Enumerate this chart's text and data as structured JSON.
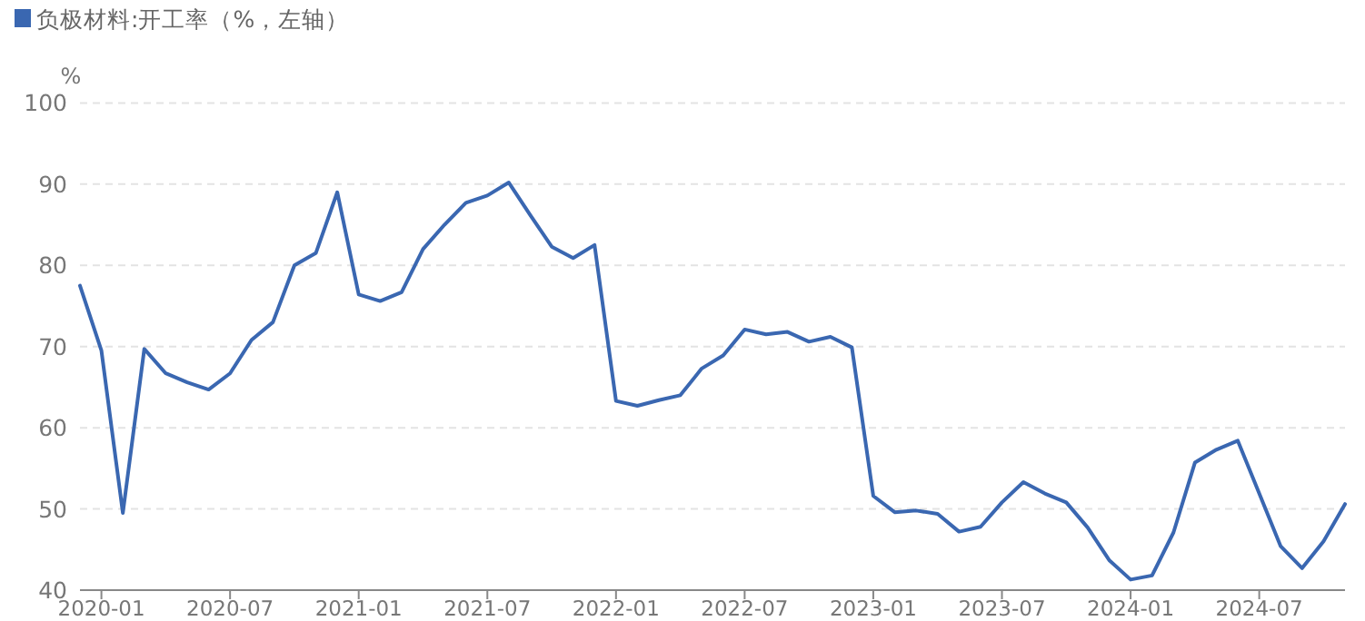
{
  "chart_data": {
    "type": "line",
    "ylabel": "%",
    "legend": "top left",
    "grid": "y",
    "marker": "none",
    "line_style": "solid",
    "x": [
      "2019-12",
      "2020-01",
      "2020-02",
      "2020-03",
      "2020-04",
      "2020-05",
      "2020-06",
      "2020-07",
      "2020-08",
      "2020-09",
      "2020-10",
      "2020-11",
      "2020-12",
      "2021-01",
      "2021-02",
      "2021-03",
      "2021-04",
      "2021-05",
      "2021-06",
      "2021-07",
      "2021-08",
      "2021-09",
      "2021-10",
      "2021-11",
      "2021-12",
      "2022-01",
      "2022-02",
      "2022-03",
      "2022-04",
      "2022-05",
      "2022-06",
      "2022-07",
      "2022-08",
      "2022-09",
      "2022-10",
      "2022-11",
      "2022-12",
      "2023-01",
      "2023-02",
      "2023-03",
      "2023-04",
      "2023-05",
      "2023-06",
      "2023-07",
      "2023-08",
      "2023-09",
      "2023-10",
      "2023-11",
      "2023-12",
      "2024-01",
      "2024-02",
      "2024-03",
      "2024-04",
      "2024-05",
      "2024-06",
      "2024-07",
      "2024-08",
      "2024-09",
      "2024-10",
      "2024-11"
    ],
    "series": [
      {
        "name": "负极材料:开工率（%，左轴）",
        "color": "#3a67b1",
        "values": [
          77.5,
          69.5,
          49.5,
          69.7,
          66.7,
          65.6,
          64.7,
          66.7,
          70.8,
          73.0,
          80.0,
          81.5,
          89.0,
          76.4,
          75.6,
          76.7,
          82.0,
          85.0,
          87.7,
          88.6,
          90.2,
          86.2,
          82.3,
          80.9,
          82.5,
          63.3,
          62.7,
          63.4,
          64.0,
          67.3,
          68.9,
          72.1,
          71.5,
          71.8,
          70.6,
          71.2,
          69.9,
          51.6,
          49.6,
          49.8,
          49.4,
          47.2,
          47.8,
          50.8,
          53.3,
          51.9,
          50.8,
          47.7,
          43.7,
          41.3,
          41.8,
          47.1,
          55.7,
          57.3,
          58.4,
          51.9,
          45.4,
          42.7,
          46.0,
          50.6
        ]
      }
    ],
    "xlim": [
      "2019-12",
      "2024-11"
    ],
    "xticks": [
      "2020-01",
      "2020-07",
      "2021-01",
      "2021-07",
      "2022-01",
      "2022-07",
      "2023-01",
      "2023-07",
      "2024-01",
      "2024-07"
    ],
    "ylim": [
      40,
      100
    ],
    "yticks": [
      40,
      50,
      60,
      70,
      80,
      90,
      100
    ]
  }
}
